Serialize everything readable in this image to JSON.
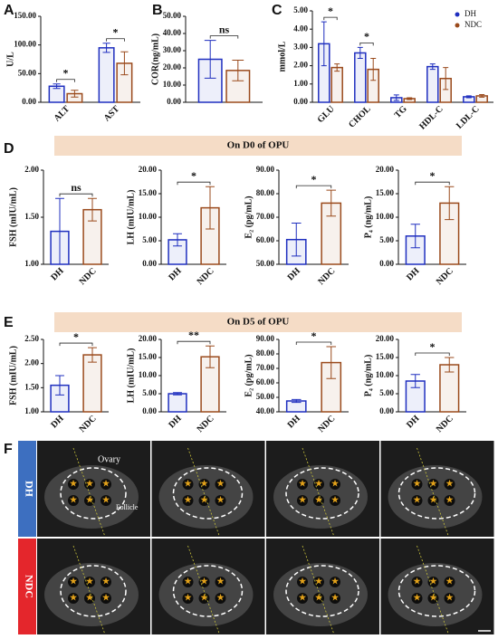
{
  "chart_data": [
    {
      "type": "bar",
      "panel": "A",
      "ylabel": "U/L",
      "categories": [
        "ALT",
        "AST"
      ],
      "series": [
        {
          "name": "DH",
          "color": "#1f2fbf",
          "values": [
            28,
            95
          ],
          "errors": [
            4,
            8
          ]
        },
        {
          "name": "NDC",
          "color": "#9a4a1c",
          "values": [
            15,
            68
          ],
          "errors": [
            6,
            20
          ]
        }
      ],
      "ylim": [
        0,
        150
      ],
      "yticks": [
        {
          "value": 0,
          "label": "0.00"
        },
        {
          "value": 50,
          "label": "50.00"
        },
        {
          "value": 100,
          "label": "100.00"
        },
        {
          "value": 150,
          "label": "150.00"
        }
      ],
      "annotations": [
        "*",
        "*"
      ]
    },
    {
      "type": "bar",
      "panel": "B",
      "ylabel": "COR(ng/mL)",
      "series": [
        {
          "name": "DH",
          "color": "#1f2fbf",
          "values": [
            25
          ],
          "errors": [
            11
          ]
        },
        {
          "name": "NDC",
          "color": "#9a4a1c",
          "values": [
            18.5
          ],
          "errors": [
            6
          ]
        }
      ],
      "ylim": [
        0,
        50
      ],
      "yticks": [
        {
          "value": 0,
          "label": "0.00"
        },
        {
          "value": 10,
          "label": "10.00"
        },
        {
          "value": 20,
          "label": "20.00"
        },
        {
          "value": 30,
          "label": "30.00"
        },
        {
          "value": 40,
          "label": "40.00"
        },
        {
          "value": 50,
          "label": "50.00"
        }
      ],
      "annotations": [
        "ns"
      ]
    },
    {
      "type": "bar",
      "panel": "C",
      "ylabel": "mmol/L",
      "categories": [
        "GLU",
        "CHOL",
        "TG",
        "HDL-C",
        "LDL-C"
      ],
      "series": [
        {
          "name": "DH",
          "color": "#1f2fbf",
          "values": [
            3.2,
            2.7,
            0.25,
            1.95,
            0.3
          ],
          "errors": [
            1.2,
            0.3,
            0.15,
            0.15,
            0.05
          ]
        },
        {
          "name": "NDC",
          "color": "#9a4a1c",
          "values": [
            1.9,
            1.8,
            0.2,
            1.3,
            0.35
          ],
          "errors": [
            0.2,
            0.6,
            0.05,
            0.6,
            0.07
          ]
        }
      ],
      "ylim": [
        0,
        5
      ],
      "yticks": [
        {
          "value": 0,
          "label": "0.00"
        },
        {
          "value": 1,
          "label": "1.00"
        },
        {
          "value": 2,
          "label": "2.00"
        },
        {
          "value": 3,
          "label": "3.00"
        },
        {
          "value": 4,
          "label": "4.00"
        },
        {
          "value": 5,
          "label": "5.00"
        }
      ],
      "annotations": [
        "*",
        "*",
        null,
        null,
        null
      ],
      "legend": "upper right"
    },
    {
      "type": "bar",
      "panel": "D",
      "ylabel": "FSH (mIU/mL)",
      "categories": [
        "DH",
        "NDC"
      ],
      "values": [
        1.35,
        1.58
      ],
      "errors": [
        0.35,
        0.12
      ],
      "colors": [
        "#1f2fbf",
        "#9a4a1c"
      ],
      "ylim": [
        1,
        2
      ],
      "yticks": [
        {
          "value": 1,
          "label": "1.00"
        },
        {
          "value": 1.5,
          "label": "1.50"
        },
        {
          "value": 2,
          "label": "2.00"
        }
      ],
      "annotation": "ns"
    },
    {
      "type": "bar",
      "ylabel": "LH (mIU/mL)",
      "categories": [
        "DH",
        "NDC"
      ],
      "values": [
        5.2,
        12
      ],
      "errors": [
        1.3,
        4.5
      ],
      "colors": [
        "#1f2fbf",
        "#9a4a1c"
      ],
      "ylim": [
        0,
        20
      ],
      "yticks": [
        {
          "value": 0,
          "label": "0.00"
        },
        {
          "value": 5,
          "label": "5.00"
        },
        {
          "value": 10,
          "label": "10.00"
        },
        {
          "value": 15,
          "label": "15.00"
        },
        {
          "value": 20,
          "label": "20.00"
        }
      ],
      "annotation": "*"
    },
    {
      "type": "bar",
      "ylabel": "E₂ (pg/mL)",
      "categories": [
        "DH",
        "NDC"
      ],
      "values": [
        60.5,
        76
      ],
      "errors": [
        7,
        5.5
      ],
      "colors": [
        "#1f2fbf",
        "#9a4a1c"
      ],
      "ylim": [
        50,
        90
      ],
      "yticks": [
        {
          "value": 50,
          "label": "50.00"
        },
        {
          "value": 60,
          "label": "60.00"
        },
        {
          "value": 70,
          "label": "70.00"
        },
        {
          "value": 80,
          "label": "80.00"
        },
        {
          "value": 90,
          "label": "90.00"
        }
      ],
      "annotation": "*"
    },
    {
      "type": "bar",
      "ylabel": "P₄ (ng/mL)",
      "categories": [
        "DH",
        "NDC"
      ],
      "values": [
        6,
        13
      ],
      "errors": [
        2.5,
        3.5
      ],
      "colors": [
        "#1f2fbf",
        "#9a4a1c"
      ],
      "ylim": [
        0,
        20
      ],
      "yticks": [
        {
          "value": 0,
          "label": "0.00"
        },
        {
          "value": 5,
          "label": "5.00"
        },
        {
          "value": 10,
          "label": "10.00"
        },
        {
          "value": 15,
          "label": "15.00"
        },
        {
          "value": 20,
          "label": "20.00"
        }
      ],
      "annotation": "*"
    },
    {
      "type": "bar",
      "panel": "E",
      "ylabel": "FSH (mIU/mL)",
      "categories": [
        "DH",
        "NDC"
      ],
      "values": [
        1.55,
        2.18
      ],
      "errors": [
        0.2,
        0.15
      ],
      "colors": [
        "#1f2fbf",
        "#9a4a1c"
      ],
      "ylim": [
        1,
        2.5
      ],
      "yticks": [
        {
          "value": 1,
          "label": "1.00"
        },
        {
          "value": 1.5,
          "label": "1.50"
        },
        {
          "value": 2,
          "label": "2.00"
        },
        {
          "value": 2.5,
          "label": "2.50"
        }
      ],
      "annotation": "*"
    },
    {
      "type": "bar",
      "ylabel": "LH (mIU/mL)",
      "categories": [
        "DH",
        "NDC"
      ],
      "values": [
        5,
        15.2
      ],
      "errors": [
        0.3,
        3
      ],
      "colors": [
        "#1f2fbf",
        "#9a4a1c"
      ],
      "ylim": [
        0,
        20
      ],
      "yticks": [
        {
          "value": 0,
          "label": "0.00"
        },
        {
          "value": 5,
          "label": "5.00"
        },
        {
          "value": 10,
          "label": "10.00"
        },
        {
          "value": 15,
          "label": "15.00"
        },
        {
          "value": 20,
          "label": "20.00"
        }
      ],
      "annotation": "**"
    },
    {
      "type": "bar",
      "ylabel": "E₂ (pg/mL)",
      "categories": [
        "DH",
        "NDC"
      ],
      "values": [
        47.5,
        74
      ],
      "errors": [
        1,
        11
      ],
      "colors": [
        "#1f2fbf",
        "#9a4a1c"
      ],
      "ylim": [
        40,
        90
      ],
      "yticks": [
        {
          "value": 40,
          "label": "40.00"
        },
        {
          "value": 50,
          "label": "50.00"
        },
        {
          "value": 60,
          "label": "60.00"
        },
        {
          "value": 70,
          "label": "70.00"
        },
        {
          "value": 80,
          "label": "80.00"
        },
        {
          "value": 90,
          "label": "90.00"
        }
      ],
      "annotation": "*"
    },
    {
      "type": "bar",
      "ylabel": "P₄ (ng/mL)",
      "categories": [
        "DH",
        "NDC"
      ],
      "values": [
        8.5,
        13
      ],
      "errors": [
        1.8,
        2
      ],
      "colors": [
        "#1f2fbf",
        "#9a4a1c"
      ],
      "ylim": [
        0,
        20
      ],
      "yticks": [
        {
          "value": 0,
          "label": "0.00"
        },
        {
          "value": 5,
          "label": "5.00"
        },
        {
          "value": 10,
          "label": "10.00"
        },
        {
          "value": 15,
          "label": "15.00"
        },
        {
          "value": 20,
          "label": "20.00"
        }
      ],
      "annotation": "*"
    }
  ],
  "banners": [
    "On D0 of OPU",
    "On D5 of OPU"
  ],
  "images": {
    "panel": "F",
    "rows": [
      "DH",
      "NDC"
    ],
    "annotations": [
      "Ovary",
      "Follicle"
    ]
  }
}
